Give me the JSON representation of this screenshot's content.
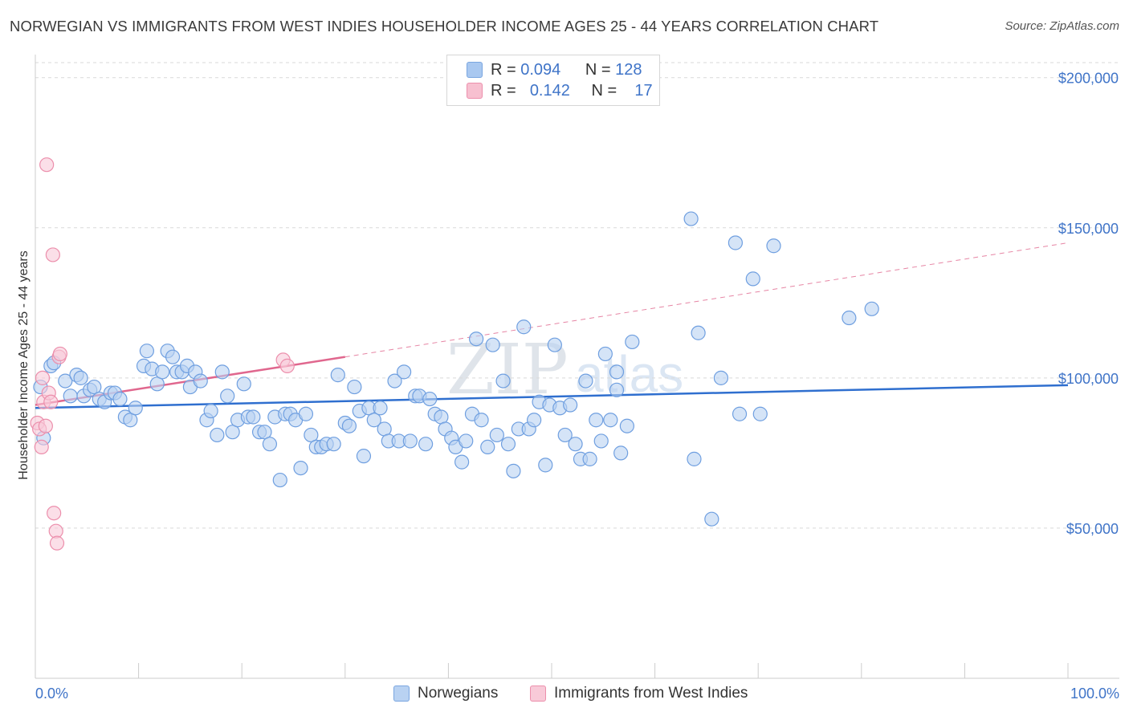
{
  "title": "NORWEGIAN VS IMMIGRANTS FROM WEST INDIES HOUSEHOLDER INCOME AGES 25 - 44 YEARS CORRELATION CHART",
  "source": "Source: ZipAtlas.com",
  "watermark": {
    "zip": "ZIP",
    "atlas": "atlas"
  },
  "legend_top": [
    {
      "r_label": "R =",
      "r_value": "0.094",
      "n_label": "N =",
      "n_value": "128",
      "color": "#a9c8f0",
      "border": "#7aa6e0"
    },
    {
      "r_label": "R =",
      "r_value": "0.142",
      "n_label": "N =",
      "n_value": "17",
      "color": "#f7c0d0",
      "border": "#ec8fac"
    }
  ],
  "legend_bottom": [
    {
      "label": "Norwegians",
      "color": "#b9d2f2",
      "border": "#7aa6e0"
    },
    {
      "label": "Immigrants from West Indies",
      "color": "#f8cad8",
      "border": "#ec8fac"
    }
  ],
  "chart_data": {
    "type": "scatter",
    "title": "NORWEGIAN VS IMMIGRANTS FROM WEST INDIES HOUSEHOLDER INCOME AGES 25 - 44 YEARS CORRELATION CHART",
    "xlabel": "",
    "ylabel": "Householder Income Ages 25 - 44 years",
    "xlim": [
      0,
      100
    ],
    "ylim": [
      0,
      205000
    ],
    "x_tick_labels": [
      "0.0%",
      "100.0%"
    ],
    "y_ticks": [
      50000,
      100000,
      150000,
      200000
    ],
    "y_tick_labels": [
      "$50,000",
      "$100,000",
      "$150,000",
      "$200,000"
    ],
    "grid": true,
    "series": [
      {
        "name": "Norwegians",
        "color": "#6f9fe0",
        "fill": "#b9d2f2",
        "trend": {
          "x": [
            0,
            100
          ],
          "y": [
            90000,
            97600
          ],
          "color": "#2f6fcf"
        },
        "points": [
          [
            0.5,
            97000
          ],
          [
            0.8,
            80000
          ],
          [
            1.5,
            104000
          ],
          [
            1.8,
            105000
          ],
          [
            2.9,
            99000
          ],
          [
            3.4,
            94000
          ],
          [
            4.0,
            101000
          ],
          [
            4.4,
            100000
          ],
          [
            4.7,
            94000
          ],
          [
            5.3,
            96000
          ],
          [
            5.7,
            97000
          ],
          [
            6.2,
            93000
          ],
          [
            6.7,
            92000
          ],
          [
            7.3,
            95000
          ],
          [
            7.7,
            95000
          ],
          [
            8.2,
            93000
          ],
          [
            8.7,
            87000
          ],
          [
            9.2,
            86000
          ],
          [
            9.7,
            90000
          ],
          [
            10.5,
            104000
          ],
          [
            10.8,
            109000
          ],
          [
            11.3,
            103000
          ],
          [
            11.8,
            98000
          ],
          [
            12.3,
            102000
          ],
          [
            12.8,
            109000
          ],
          [
            13.3,
            107000
          ],
          [
            13.7,
            102000
          ],
          [
            14.2,
            102000
          ],
          [
            14.7,
            104000
          ],
          [
            15.0,
            97000
          ],
          [
            15.5,
            102000
          ],
          [
            16.0,
            99000
          ],
          [
            16.6,
            86000
          ],
          [
            17.0,
            89000
          ],
          [
            17.6,
            81000
          ],
          [
            18.1,
            102000
          ],
          [
            18.6,
            94000
          ],
          [
            19.1,
            82000
          ],
          [
            19.6,
            86000
          ],
          [
            20.2,
            98000
          ],
          [
            20.6,
            87000
          ],
          [
            21.1,
            87000
          ],
          [
            21.7,
            82000
          ],
          [
            22.2,
            82000
          ],
          [
            22.7,
            78000
          ],
          [
            23.2,
            87000
          ],
          [
            23.7,
            66000
          ],
          [
            24.2,
            88000
          ],
          [
            24.7,
            88000
          ],
          [
            25.2,
            86000
          ],
          [
            25.7,
            70000
          ],
          [
            26.2,
            88000
          ],
          [
            26.7,
            81000
          ],
          [
            27.2,
            77000
          ],
          [
            27.7,
            77000
          ],
          [
            28.2,
            78000
          ],
          [
            28.9,
            78000
          ],
          [
            29.3,
            101000
          ],
          [
            30.0,
            85000
          ],
          [
            30.4,
            84000
          ],
          [
            30.9,
            97000
          ],
          [
            31.4,
            89000
          ],
          [
            31.8,
            74000
          ],
          [
            32.3,
            90000
          ],
          [
            32.8,
            86000
          ],
          [
            33.4,
            90000
          ],
          [
            33.8,
            83000
          ],
          [
            34.2,
            79000
          ],
          [
            34.8,
            99000
          ],
          [
            35.2,
            79000
          ],
          [
            35.7,
            102000
          ],
          [
            36.3,
            79000
          ],
          [
            36.8,
            94000
          ],
          [
            37.2,
            94000
          ],
          [
            37.8,
            78000
          ],
          [
            38.2,
            93000
          ],
          [
            38.7,
            88000
          ],
          [
            39.3,
            87000
          ],
          [
            39.7,
            83000
          ],
          [
            40.3,
            80000
          ],
          [
            40.7,
            77000
          ],
          [
            41.3,
            72000
          ],
          [
            41.7,
            79000
          ],
          [
            42.3,
            88000
          ],
          [
            42.7,
            113000
          ],
          [
            43.2,
            86000
          ],
          [
            43.8,
            77000
          ],
          [
            44.3,
            111000
          ],
          [
            44.7,
            81000
          ],
          [
            45.3,
            99000
          ],
          [
            45.8,
            78000
          ],
          [
            46.3,
            69000
          ],
          [
            46.8,
            83000
          ],
          [
            47.3,
            117000
          ],
          [
            47.8,
            83000
          ],
          [
            48.3,
            86000
          ],
          [
            48.8,
            92000
          ],
          [
            49.4,
            71000
          ],
          [
            49.8,
            91000
          ],
          [
            50.3,
            111000
          ],
          [
            50.8,
            90000
          ],
          [
            51.3,
            81000
          ],
          [
            51.8,
            91000
          ],
          [
            52.3,
            78000
          ],
          [
            52.8,
            73000
          ],
          [
            53.3,
            99000
          ],
          [
            53.7,
            73000
          ],
          [
            54.3,
            86000
          ],
          [
            54.8,
            79000
          ],
          [
            55.2,
            108000
          ],
          [
            55.7,
            86000
          ],
          [
            56.3,
            102000
          ],
          [
            56.7,
            75000
          ],
          [
            57.3,
            84000
          ],
          [
            57.8,
            112000
          ],
          [
            63.5,
            153000
          ],
          [
            63.8,
            73000
          ],
          [
            64.2,
            115000
          ],
          [
            65.5,
            53000
          ],
          [
            66.4,
            100000
          ],
          [
            67.8,
            145000
          ],
          [
            68.2,
            88000
          ],
          [
            69.5,
            133000
          ],
          [
            70.2,
            88000
          ],
          [
            71.5,
            144000
          ],
          [
            78.8,
            120000
          ],
          [
            81.0,
            123000
          ],
          [
            56.3,
            96000
          ]
        ]
      },
      {
        "name": "Immigrants from West Indies",
        "color": "#ec8fac",
        "fill": "#f8cad8",
        "trend": {
          "x": [
            0,
            30
          ],
          "y": [
            91000,
            107000
          ],
          "color": "#e0678e",
          "extend_to": 100,
          "extend_y": 145000
        },
        "points": [
          [
            0.2,
            85000
          ],
          [
            0.4,
            83000
          ],
          [
            0.6,
            77000
          ],
          [
            0.7,
            100000
          ],
          [
            0.8,
            92000
          ],
          [
            1.0,
            84000
          ],
          [
            1.1,
            171000
          ],
          [
            1.3,
            95000
          ],
          [
            1.5,
            92000
          ],
          [
            1.7,
            141000
          ],
          [
            1.8,
            55000
          ],
          [
            2.0,
            49000
          ],
          [
            2.1,
            45000
          ],
          [
            2.3,
            107000
          ],
          [
            2.4,
            108000
          ],
          [
            24.0,
            106000
          ],
          [
            24.4,
            104000
          ]
        ]
      }
    ]
  }
}
